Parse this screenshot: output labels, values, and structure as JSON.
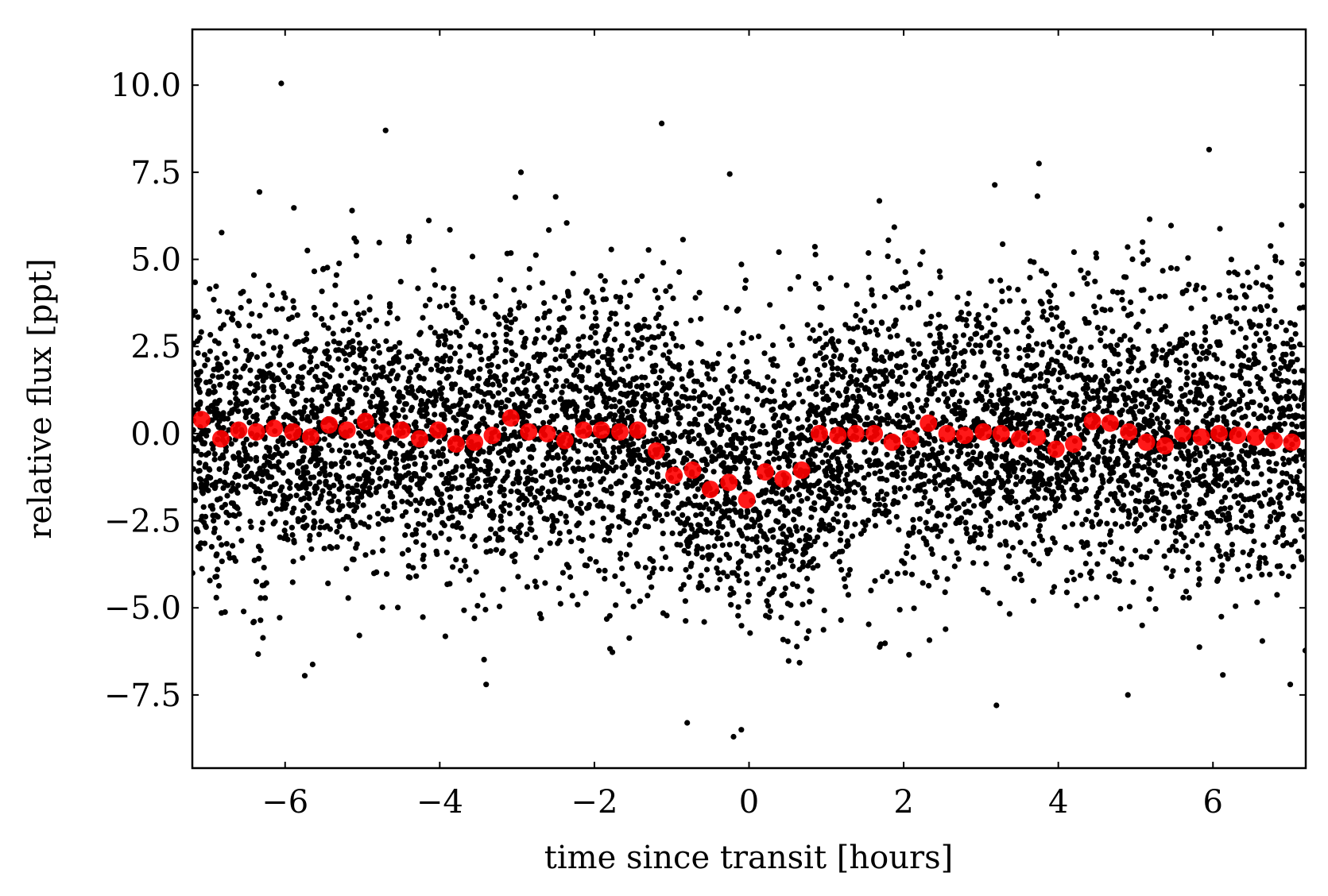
{
  "chart_data": {
    "type": "scatter",
    "xlabel": "time since transit [hours]",
    "ylabel": "relative flux [ppt]",
    "xlim": [
      -7.2,
      7.2
    ],
    "ylim": [
      -9.6,
      11.6
    ],
    "xticks": [
      -6,
      -4,
      -2,
      0,
      2,
      4,
      6
    ],
    "xtick_labels": [
      "−6",
      "−4",
      "−2",
      "0",
      "2",
      "4",
      "6"
    ],
    "yticks": [
      -7.5,
      -5.0,
      -2.5,
      0.0,
      2.5,
      5.0,
      7.5,
      10.0
    ],
    "ytick_labels": [
      "−7.5",
      "−5.0",
      "−2.5",
      "0.0",
      "2.5",
      "5.0",
      "7.5",
      "10.0"
    ],
    "grid": false,
    "series": [
      {
        "role": "unbinned",
        "color": "#000000",
        "generation": {
          "count": 6500,
          "x_range": [
            -7.2,
            7.2
          ],
          "scatter_sd": 2.1,
          "seed": 12345,
          "transit_depth": 1.4,
          "transit_half_width": 0.85
        },
        "outliers": {
          "x": [
            -6.05,
            -4.7,
            -1.13,
            -0.25,
            5.95,
            3.75,
            -2.95,
            -3.4,
            -0.2,
            -0.8,
            -0.1,
            3.2,
            4.9,
            7.0
          ],
          "y": [
            10.05,
            8.7,
            8.9,
            7.45,
            8.15,
            7.75,
            7.5,
            -7.2,
            -8.7,
            -8.3,
            -8.5,
            -7.8,
            -7.5,
            -7.2
          ]
        }
      },
      {
        "role": "binned",
        "color": "#ff0000",
        "x": [
          -7.08,
          -6.83,
          -6.6,
          -6.37,
          -6.14,
          -5.9,
          -5.67,
          -5.43,
          -5.2,
          -4.96,
          -4.73,
          -4.49,
          -4.26,
          -4.02,
          -3.79,
          -3.55,
          -3.32,
          -3.08,
          -2.85,
          -2.61,
          -2.38,
          -2.14,
          -1.91,
          -1.67,
          -1.44,
          -1.2,
          -0.97,
          -0.73,
          -0.5,
          -0.26,
          -0.03,
          0.21,
          0.44,
          0.68,
          0.91,
          1.15,
          1.38,
          1.62,
          1.85,
          2.09,
          2.32,
          2.56,
          2.79,
          3.03,
          3.26,
          3.5,
          3.73,
          3.97,
          4.2,
          4.44,
          4.67,
          4.91,
          5.14,
          5.38,
          5.61,
          5.85,
          6.08,
          6.32,
          6.55,
          6.79,
          7.02
        ],
        "y": [
          0.4,
          -0.15,
          0.1,
          0.05,
          0.15,
          0.05,
          -0.1,
          0.25,
          0.1,
          0.35,
          0.05,
          0.1,
          -0.15,
          0.1,
          -0.3,
          -0.25,
          -0.05,
          0.45,
          0.05,
          0.0,
          -0.2,
          0.1,
          0.1,
          0.05,
          0.1,
          -0.5,
          -1.2,
          -1.05,
          -1.6,
          -1.4,
          -1.9,
          -1.1,
          -1.3,
          -1.05,
          0.0,
          -0.05,
          0.0,
          0.0,
          -0.25,
          -0.15,
          0.3,
          0.0,
          -0.05,
          0.05,
          0.0,
          -0.15,
          -0.1,
          -0.45,
          -0.3,
          0.35,
          0.3,
          0.05,
          -0.25,
          -0.35,
          0.0,
          -0.1,
          0.0,
          -0.05,
          -0.1,
          -0.2,
          -0.25
        ]
      }
    ]
  }
}
